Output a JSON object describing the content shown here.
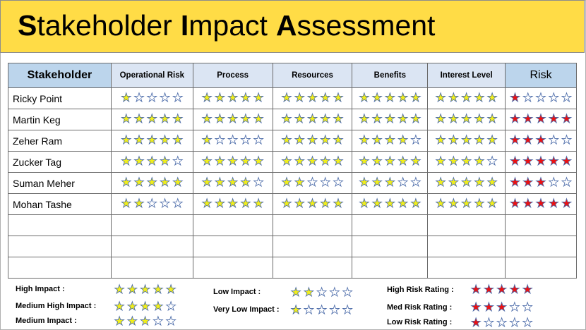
{
  "title": {
    "words": [
      {
        "initial": "S",
        "rest": "takeholder"
      },
      {
        "initial": "I",
        "rest": "mpact"
      },
      {
        "initial": "A",
        "rest": "ssessment"
      }
    ]
  },
  "colors": {
    "banner": "#FFDC46",
    "impact_star": "#F2EF1A",
    "risk_star": "#EE1010",
    "header": "#DBE5F3",
    "header_accent": "#BCD5EC"
  },
  "table": {
    "headers": [
      "Stakeholder",
      "Operational Risk",
      "Process",
      "Resources",
      "Benefits",
      "Interest Level",
      "Risk"
    ],
    "max_stars": 5,
    "rows": [
      {
        "name": "Ricky Point",
        "ratings": [
          1,
          5,
          5,
          5,
          5
        ],
        "risk": 1
      },
      {
        "name": "Martin Keg",
        "ratings": [
          5,
          5,
          5,
          5,
          5
        ],
        "risk": 5
      },
      {
        "name": "Zeher Ram",
        "ratings": [
          5,
          1,
          5,
          4,
          5
        ],
        "risk": 3
      },
      {
        "name": "Zucker Tag",
        "ratings": [
          4,
          5,
          5,
          5,
          4
        ],
        "risk": 5
      },
      {
        "name": "Suman Meher",
        "ratings": [
          5,
          4,
          2,
          3,
          5
        ],
        "risk": 3
      },
      {
        "name": "Mohan Tashe",
        "ratings": [
          2,
          5,
          5,
          5,
          5
        ],
        "risk": 5
      }
    ],
    "empty_rows": 3
  },
  "legend": [
    {
      "label": "High Impact :",
      "stars": 5,
      "type": "impact"
    },
    {
      "label": "Medium High Impact :",
      "stars": 4,
      "type": "impact"
    },
    {
      "label": "Medium Impact :",
      "stars": 3,
      "type": "impact"
    },
    {
      "label": "Low Impact :",
      "stars": 2,
      "type": "impact"
    },
    {
      "label": "Very Low Impact :",
      "stars": 1,
      "type": "impact"
    },
    {
      "label": "High Risk Rating :",
      "stars": 5,
      "type": "risk"
    },
    {
      "label": "Med Risk Rating :",
      "stars": 3,
      "type": "risk"
    },
    {
      "label": "Low Risk Rating :",
      "stars": 1,
      "type": "risk"
    }
  ]
}
